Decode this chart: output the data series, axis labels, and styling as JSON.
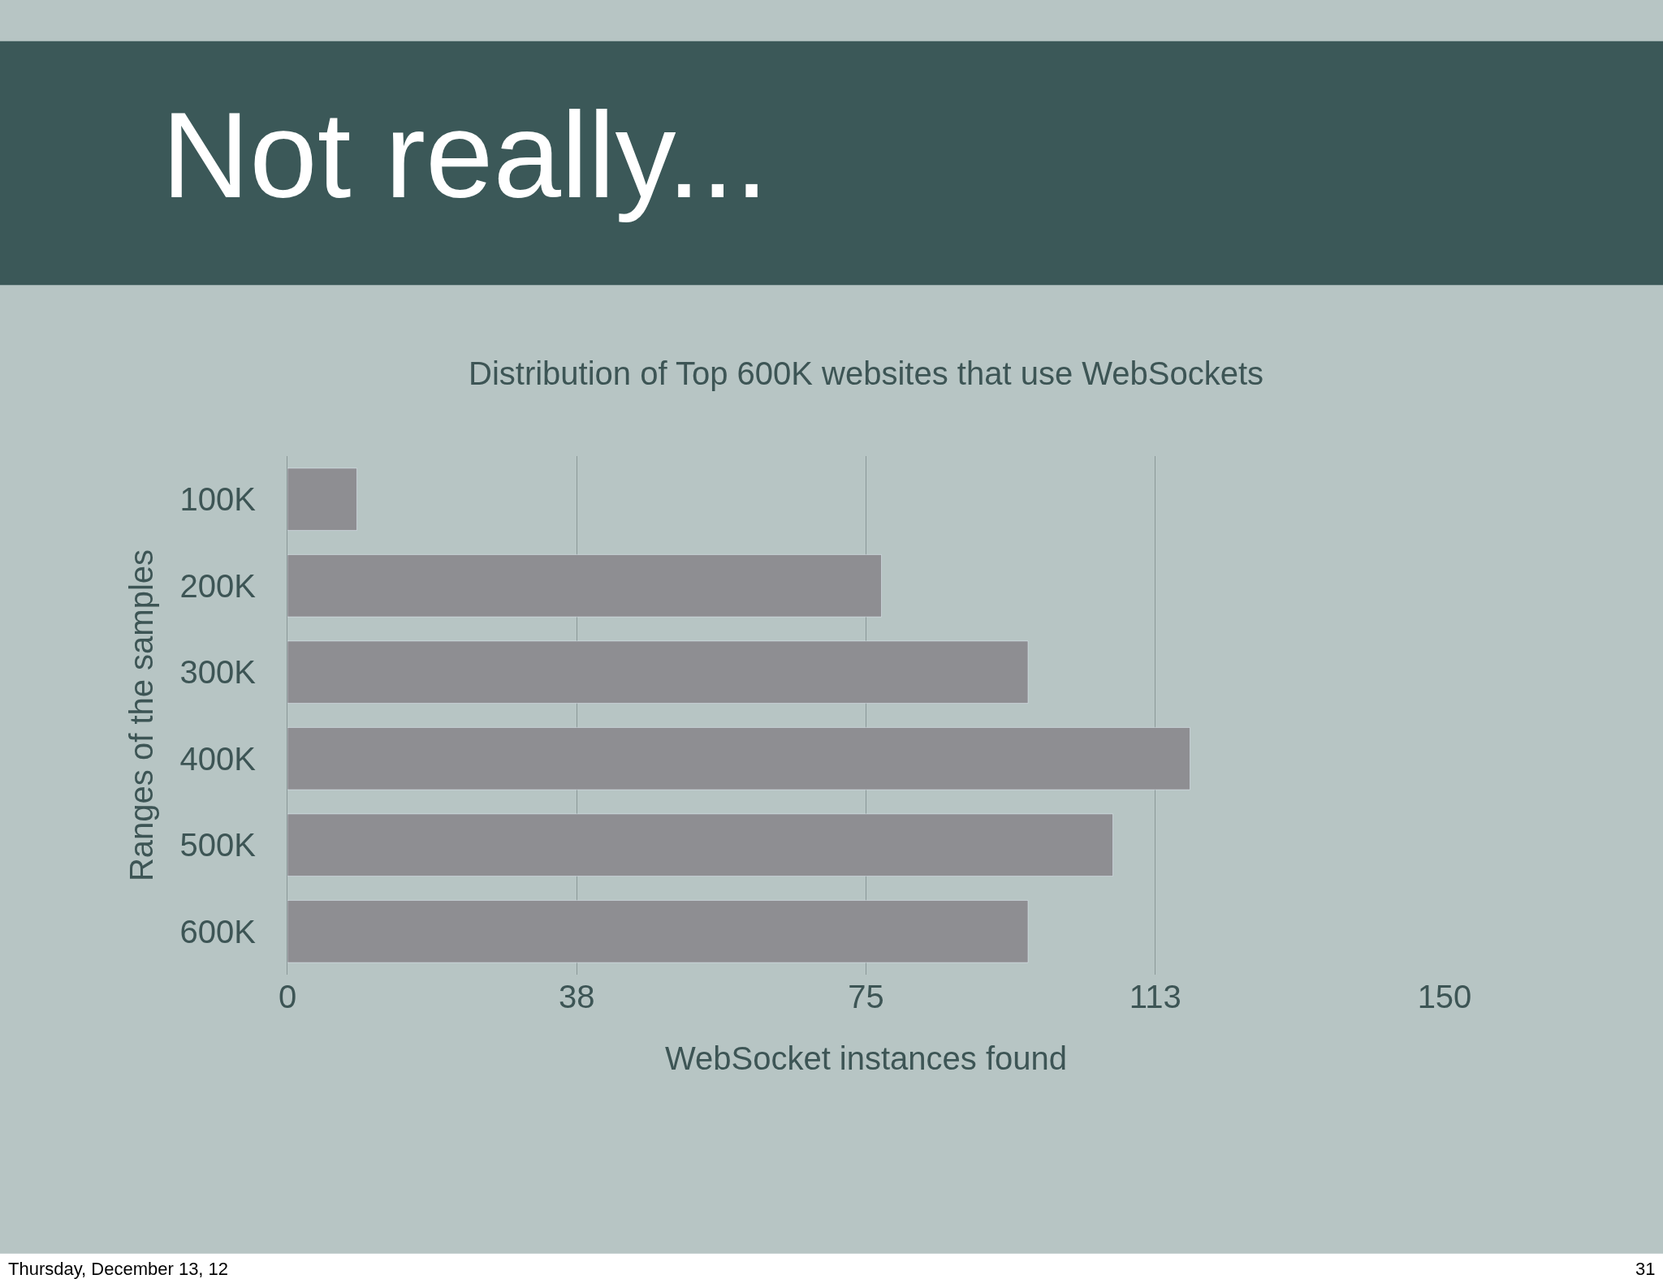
{
  "chart_data": {
    "type": "bar",
    "orientation": "horizontal",
    "title": "Not really...",
    "subtitle": "Distribution of Top 600K websites that use WebSockets",
    "categories": [
      "100K",
      "200K",
      "300K",
      "400K",
      "500K",
      "600K"
    ],
    "values": [
      9,
      77,
      96,
      117,
      107,
      96
    ],
    "color": "#8e8e92",
    "xlim": [
      0,
      150
    ],
    "xticks": [
      0,
      {
        "value": 37.5,
        "label": "38"
      },
      75,
      {
        "value": 112.5,
        "label": "113"
      },
      150
    ],
    "xlabel": "WebSocket instances found",
    "ylabel": "Ranges of the samples",
    "grid": "x",
    "annotations": [
      "Thursday, December 13, 12",
      "31"
    ]
  }
}
